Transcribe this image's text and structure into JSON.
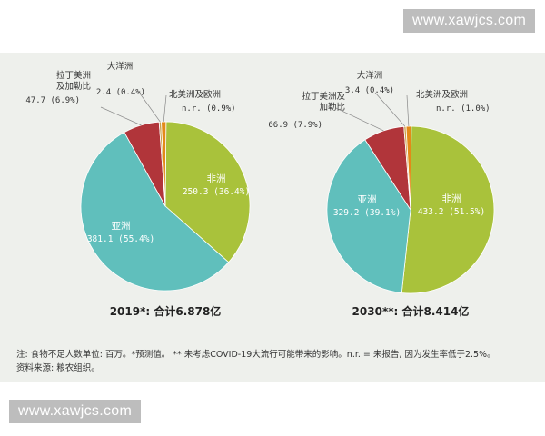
{
  "watermark": "www.xawjcs.com",
  "colors": {
    "africa": "#a9c23b",
    "asia": "#60bfbc",
    "latin": "#b1353a",
    "oceania": "#c9a14a",
    "north_america_europe": "#e38a18",
    "panel_bg": "#eef0ec"
  },
  "chart_data": [
    {
      "type": "pie",
      "title": "2019*: 合计6.878亿",
      "slices": [
        {
          "label": "非洲",
          "value_text": "250.3 (36.4%)",
          "value": 250.3,
          "percent": 36.4,
          "color": "#a9c23b"
        },
        {
          "label": "亚洲",
          "value_text": "381.1 (55.4%)",
          "value": 381.1,
          "percent": 55.4,
          "color": "#60bfbc"
        },
        {
          "label": "拉丁美洲\n及加勒比",
          "value_text": "47.7 (6.9%)",
          "value": 47.7,
          "percent": 6.9,
          "color": "#b1353a"
        },
        {
          "label": "大洋洲",
          "value_text": "2.4 (0.4%)",
          "value": 2.4,
          "percent": 0.4,
          "color": "#c9a14a"
        },
        {
          "label": "北美洲及欧洲",
          "value_text": "n.r. (0.9%)",
          "value": null,
          "percent": 0.9,
          "color": "#e38a18"
        }
      ]
    },
    {
      "type": "pie",
      "title": "2030**: 合计8.414亿",
      "slices": [
        {
          "label": "非洲",
          "value_text": "433.2 (51.5%)",
          "value": 433.2,
          "percent": 51.5,
          "color": "#a9c23b"
        },
        {
          "label": "亚洲",
          "value_text": "329.2 (39.1%)",
          "value": 329.2,
          "percent": 39.1,
          "color": "#60bfbc"
        },
        {
          "label": "拉丁美洲及\n加勒比",
          "value_text": "66.9 (7.9%)",
          "value": 66.9,
          "percent": 7.9,
          "color": "#b1353a"
        },
        {
          "label": "大洋洲",
          "value_text": "3.4 (0.4%)",
          "value": 3.4,
          "percent": 0.4,
          "color": "#c9a14a"
        },
        {
          "label": "北美洲及欧洲",
          "value_text": "n.r. (1.0%)",
          "value": null,
          "percent": 1.0,
          "color": "#e38a18"
        }
      ]
    }
  ],
  "notes": {
    "line1": "注: 食物不足人数单位: 百万。*预测值。 ** 未考虑COVID-19大流行可能带来的影响。n.r. = 未报告, 因为发生率低于2.5%。",
    "line2": "资料来源: 粮农组织。"
  }
}
